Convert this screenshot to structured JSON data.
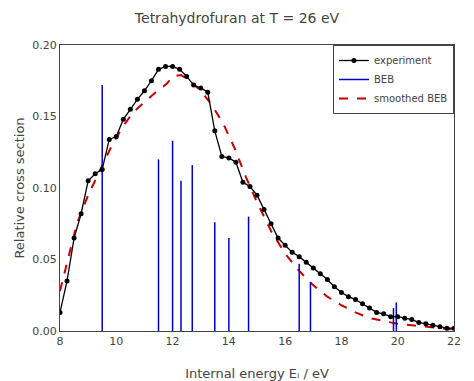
{
  "chart_data": {
    "type": "line",
    "title": "Tetrahydrofuran at T = 26 eV",
    "xlabel": "Internal energy Eᵢ / eV",
    "ylabel": "Relative cross section",
    "xlim": [
      8,
      22
    ],
    "ylim": [
      0,
      0.2
    ],
    "xticks": [
      8,
      10,
      12,
      14,
      16,
      18,
      20,
      22
    ],
    "yticks": [
      {
        "value": 0,
        "label": "0.00"
      },
      0.05,
      {
        "value": 0.1,
        "label": "0.10"
      },
      0.15,
      {
        "value": 0.2,
        "label": "0.20"
      }
    ],
    "grid": false,
    "legend": "upper right",
    "series": [
      {
        "name": "experiment",
        "type": "line",
        "color": "#000000",
        "marker": "circle",
        "line_style": "solid",
        "x": [
          8.0,
          8.25,
          8.5,
          8.75,
          9.0,
          9.25,
          9.5,
          9.75,
          10.0,
          10.25,
          10.5,
          10.75,
          11.0,
          11.25,
          11.5,
          11.75,
          12.0,
          12.25,
          12.5,
          12.75,
          13.0,
          13.25,
          13.5,
          13.75,
          14.0,
          14.25,
          14.5,
          14.75,
          15.0,
          15.25,
          15.5,
          15.75,
          16.0,
          16.25,
          16.5,
          16.75,
          17.0,
          17.25,
          17.5,
          17.75,
          18.0,
          18.25,
          18.5,
          18.75,
          19.0,
          19.25,
          19.5,
          19.75,
          20.0,
          20.25,
          20.5,
          20.75,
          21.0,
          21.25,
          21.5,
          21.75,
          22.0
        ],
        "values": [
          0.013,
          0.035,
          0.065,
          0.082,
          0.105,
          0.11,
          0.113,
          0.134,
          0.136,
          0.148,
          0.155,
          0.162,
          0.168,
          0.175,
          0.183,
          0.185,
          0.185,
          0.183,
          0.178,
          0.172,
          0.17,
          0.167,
          0.14,
          0.122,
          0.121,
          0.118,
          0.104,
          0.101,
          0.095,
          0.085,
          0.075,
          0.065,
          0.06,
          0.055,
          0.052,
          0.048,
          0.044,
          0.04,
          0.036,
          0.031,
          0.027,
          0.024,
          0.022,
          0.019,
          0.016,
          0.013,
          0.012,
          0.01,
          0.01,
          0.009,
          0.008,
          0.006,
          0.005,
          0.004,
          0.003,
          0.002,
          0.002
        ]
      },
      {
        "name": "BEB",
        "type": "stem",
        "color": "#0000cc",
        "line_style": "solid",
        "x": [
          9.5,
          11.5,
          12.0,
          12.3,
          12.7,
          13.5,
          14.0,
          14.7,
          16.5,
          16.9,
          19.85,
          19.95
        ],
        "values": [
          0.172,
          0.12,
          0.133,
          0.105,
          0.116,
          0.076,
          0.065,
          0.08,
          0.047,
          0.034,
          0.016,
          0.02
        ]
      },
      {
        "name": "smoothed BEB",
        "type": "line",
        "color": "#cc0000",
        "line_style": "dashed",
        "x": [
          8.0,
          8.3,
          8.6,
          9.0,
          9.4,
          9.8,
          10.2,
          10.6,
          11.0,
          11.4,
          11.8,
          12.0,
          12.3,
          12.6,
          13.0,
          13.4,
          13.8,
          14.2,
          14.6,
          15.0,
          15.5,
          16.0,
          16.5,
          17.0,
          17.5,
          18.0,
          18.5,
          19.0,
          19.5,
          20.0,
          20.5,
          21.0,
          21.5,
          22.0
        ],
        "values": [
          0.028,
          0.052,
          0.075,
          0.095,
          0.112,
          0.128,
          0.142,
          0.153,
          0.16,
          0.167,
          0.173,
          0.178,
          0.179,
          0.175,
          0.168,
          0.158,
          0.145,
          0.128,
          0.108,
          0.09,
          0.07,
          0.054,
          0.042,
          0.032,
          0.024,
          0.018,
          0.013,
          0.009,
          0.007,
          0.005,
          0.004,
          0.003,
          0.002,
          0.001
        ]
      }
    ]
  }
}
